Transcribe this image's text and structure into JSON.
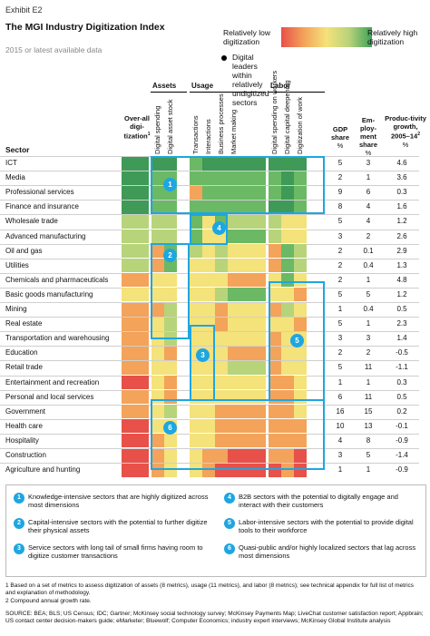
{
  "header": {
    "exhibit": "Exhibit E2",
    "title": "The MGI Industry Digitization Index",
    "subtitle": "2015 or latest available data"
  },
  "legend": {
    "low": "Relatively low digitization",
    "high": "Relatively high digitization",
    "dot": "Digital leaders within relatively undigitized sectors"
  },
  "groups": {
    "assets": "Assets",
    "usage": "Usage",
    "labor": "Labor"
  },
  "columns": {
    "sector": "Sector",
    "overall": "Over-all digi-tization",
    "overall_sup": "1",
    "metrics": [
      "Digital spending",
      "Digital asset stock",
      "Transactions",
      "Interactions",
      "Business processes",
      "Market making",
      "Digital spending on workers",
      "Digital capital deepening",
      "Digitization of work"
    ],
    "gdp": "GDP share",
    "gdp_unit": "%",
    "emp": "Em-ploy-ment share",
    "emp_unit": "%",
    "prod": "Produc-tivity growth, 2005–14",
    "prod_sup": "2",
    "prod_unit": "%"
  },
  "colors": {
    "darkgreen": "#3e9a56",
    "green": "#6bb965",
    "lightgreen": "#b7d47a",
    "yellow": "#f4e27a",
    "orange": "#f3a35a",
    "red": "#e8504a",
    "accent": "#1ea6e0"
  },
  "chart_data": {
    "type": "heatmap",
    "scale": [
      "red",
      "orange",
      "yellow",
      "lightgreen",
      "green",
      "darkgreen"
    ],
    "rows": [
      {
        "sector": "ICT",
        "leader": false,
        "overall": "darkgreen",
        "cells": [
          "darkgreen",
          "darkgreen",
          "green",
          "darkgreen",
          "darkgreen",
          "darkgreen",
          "darkgreen",
          "darkgreen",
          "darkgreen"
        ],
        "gdp": "5",
        "emp": "3",
        "prod": "4.6"
      },
      {
        "sector": "Media",
        "leader": false,
        "overall": "darkgreen",
        "cells": [
          "green",
          "green",
          "green",
          "green",
          "green",
          "green",
          "green",
          "darkgreen",
          "green"
        ],
        "gdp": "2",
        "emp": "1",
        "prod": "3.6"
      },
      {
        "sector": "Professional services",
        "leader": false,
        "overall": "darkgreen",
        "cells": [
          "green",
          "green",
          "orange",
          "green",
          "green",
          "green",
          "green",
          "darkgreen",
          "green"
        ],
        "gdp": "9",
        "emp": "6",
        "prod": "0.3"
      },
      {
        "sector": "Finance and insurance",
        "leader": false,
        "overall": "darkgreen",
        "cells": [
          "green",
          "green",
          "green",
          "green",
          "green",
          "green",
          "darkgreen",
          "darkgreen",
          "green"
        ],
        "gdp": "8",
        "emp": "4",
        "prod": "1.6"
      },
      {
        "sector": "Wholesale trade",
        "leader": false,
        "overall": "lightgreen",
        "cells": [
          "lightgreen",
          "lightgreen",
          "green",
          "yellow",
          "green",
          "lightgreen",
          "lightgreen",
          "yellow",
          "yellow"
        ],
        "gdp": "5",
        "emp": "4",
        "prod": "1.2"
      },
      {
        "sector": "Advanced manufacturing",
        "leader": false,
        "overall": "lightgreen",
        "cells": [
          "lightgreen",
          "lightgreen",
          "green",
          "yellow",
          "yellow",
          "green",
          "lightgreen",
          "yellow",
          "yellow"
        ],
        "gdp": "3",
        "emp": "2",
        "prod": "2.6"
      },
      {
        "sector": "Oil and gas",
        "leader": false,
        "overall": "lightgreen",
        "cells": [
          "orange",
          "green",
          "lightgreen",
          "yellow",
          "lightgreen",
          "yellow",
          "orange",
          "green",
          "lightgreen"
        ],
        "gdp": "2",
        "emp": "0.1",
        "prod": "2.9"
      },
      {
        "sector": "Utilities",
        "leader": false,
        "overall": "lightgreen",
        "cells": [
          "orange",
          "green",
          "yellow",
          "yellow",
          "lightgreen",
          "yellow",
          "orange",
          "green",
          "lightgreen"
        ],
        "gdp": "2",
        "emp": "0.4",
        "prod": "1.3"
      },
      {
        "sector": "Chemicals and pharmaceuticals",
        "leader": false,
        "overall": "orange",
        "cells": [
          "yellow",
          "yellow",
          "yellow",
          "yellow",
          "yellow",
          "orange",
          "yellow",
          "green",
          "yellow"
        ],
        "gdp": "2",
        "emp": "1",
        "prod": "4.8"
      },
      {
        "sector": "Basic goods manufacturing",
        "leader": false,
        "overall": "yellow",
        "cells": [
          "yellow",
          "yellow",
          "yellow",
          "yellow",
          "lightgreen",
          "green",
          "yellow",
          "yellow",
          "orange"
        ],
        "gdp": "5",
        "emp": "5",
        "prod": "1.2"
      },
      {
        "sector": "Mining",
        "leader": false,
        "overall": "orange",
        "cells": [
          "orange",
          "lightgreen",
          "yellow",
          "yellow",
          "orange",
          "yellow",
          "orange",
          "lightgreen",
          "yellow"
        ],
        "gdp": "1",
        "emp": "0.4",
        "prod": "0.5"
      },
      {
        "sector": "Real estate",
        "leader": true,
        "overall": "orange",
        "cells": [
          "yellow",
          "lightgreen",
          "yellow",
          "yellow",
          "orange",
          "yellow",
          "yellow",
          "yellow",
          "orange"
        ],
        "gdp": "5",
        "emp": "1",
        "prod": "2.3"
      },
      {
        "sector": "Transportation and warehousing",
        "leader": true,
        "overall": "orange",
        "cells": [
          "yellow",
          "lightgreen",
          "yellow",
          "yellow",
          "yellow",
          "yellow",
          "orange",
          "yellow",
          "yellow"
        ],
        "gdp": "3",
        "emp": "3",
        "prod": "1.4"
      },
      {
        "sector": "Education",
        "leader": true,
        "overall": "orange",
        "cells": [
          "yellow",
          "orange",
          "yellow",
          "yellow",
          "yellow",
          "orange",
          "orange",
          "yellow",
          "yellow"
        ],
        "gdp": "2",
        "emp": "2",
        "prod": "-0.5"
      },
      {
        "sector": "Retail trade",
        "leader": true,
        "overall": "orange",
        "cells": [
          "yellow",
          "yellow",
          "yellow",
          "yellow",
          "yellow",
          "lightgreen",
          "orange",
          "yellow",
          "yellow"
        ],
        "gdp": "5",
        "emp": "11",
        "prod": "-1.1"
      },
      {
        "sector": "Entertainment and recreation",
        "leader": false,
        "overall": "red",
        "cells": [
          "yellow",
          "orange",
          "yellow",
          "yellow",
          "yellow",
          "yellow",
          "orange",
          "orange",
          "yellow"
        ],
        "gdp": "1",
        "emp": "1",
        "prod": "0.3"
      },
      {
        "sector": "Personal and local services",
        "leader": false,
        "overall": "orange",
        "cells": [
          "yellow",
          "orange",
          "yellow",
          "yellow",
          "yellow",
          "yellow",
          "orange",
          "orange",
          "yellow"
        ],
        "gdp": "6",
        "emp": "11",
        "prod": "0.5"
      },
      {
        "sector": "Government",
        "leader": true,
        "overall": "orange",
        "cells": [
          "yellow",
          "lightgreen",
          "yellow",
          "yellow",
          "orange",
          "orange",
          "orange",
          "orange",
          "yellow"
        ],
        "gdp": "16",
        "emp": "15",
        "prod": "0.2"
      },
      {
        "sector": "Health care",
        "leader": false,
        "overall": "red",
        "cells": [
          "yellow",
          "yellow",
          "yellow",
          "yellow",
          "orange",
          "orange",
          "orange",
          "orange",
          "orange"
        ],
        "gdp": "10",
        "emp": "13",
        "prod": "-0.1"
      },
      {
        "sector": "Hospitality",
        "leader": true,
        "overall": "red",
        "cells": [
          "orange",
          "yellow",
          "yellow",
          "yellow",
          "orange",
          "orange",
          "orange",
          "orange",
          "orange"
        ],
        "gdp": "4",
        "emp": "8",
        "prod": "-0.9"
      },
      {
        "sector": "Construction",
        "leader": false,
        "overall": "red",
        "cells": [
          "orange",
          "yellow",
          "yellow",
          "orange",
          "orange",
          "red",
          "orange",
          "orange",
          "red"
        ],
        "gdp": "3",
        "emp": "5",
        "prod": "-1.4"
      },
      {
        "sector": "Agriculture and hunting",
        "leader": false,
        "overall": "red",
        "cells": [
          "orange",
          "yellow",
          "yellow",
          "orange",
          "red",
          "red",
          "red",
          "orange",
          "red"
        ],
        "gdp": "1",
        "emp": "1",
        "prod": "-0.9"
      }
    ],
    "callouts": [
      "1",
      "2",
      "3",
      "4",
      "5",
      "6"
    ]
  },
  "notes": [
    {
      "n": "1",
      "text": "Knowledge-intensive sectors that are highly digitized across most dimensions"
    },
    {
      "n": "2",
      "text": "Capital-intensive sectors with the potential to further digitize their physical assets"
    },
    {
      "n": "3",
      "text": "Service sectors with long tail of small firms having room to digitize customer transactions"
    },
    {
      "n": "4",
      "text": "B2B sectors with the potential to digitally engage and interact with their customers"
    },
    {
      "n": "5",
      "text": "Labor-intensive sectors with the potential to provide digital tools to their workforce"
    },
    {
      "n": "6",
      "text": "Quasi-public and/or highly localized sectors that lag across most dimensions"
    }
  ],
  "footnotes": {
    "f1": "1  Based on a set of metrics to assess digitization of assets (8 metrics), usage (11 metrics), and labor (8 metrics); see technical appendix for full list of metrics and explanation of methodology.",
    "f2": "2  Compound annual growth rate.",
    "source": "SOURCE:  BEA; BLS; US Census; IDC; Gartner; McKinsey social technology survey; McKinsey Payments Map; LiveChat customer satisfaction report; Appbrain; US contact center decision-makers guide; eMarketer; Bluewolf; Computer Economics; industry expert interviews; McKinsey Global Institute analysis"
  }
}
